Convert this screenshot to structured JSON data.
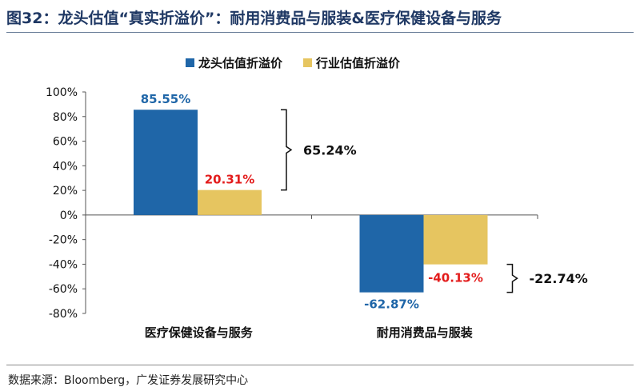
{
  "figure_title": "图32：龙头估值“真实折溢价”：耐用消费品与服装&医疗保健设备与服务",
  "source": "数据来源：Bloomberg，广发证券发展研究中心",
  "colors": {
    "series_0": "#1f66a8",
    "series_1": "#e6c560",
    "neg_label": "#e31c1c"
  },
  "chart_data": {
    "type": "bar",
    "categories": [
      "医疗保健设备与服务",
      "耐用消费品与服装"
    ],
    "series": [
      {
        "name": "龙头估值折溢价",
        "values": [
          85.55,
          -62.87
        ],
        "labels": [
          "85.55%",
          "-62.87%"
        ]
      },
      {
        "name": "行业估值折溢价",
        "values": [
          20.31,
          -40.13
        ],
        "labels": [
          "20.31%",
          "-40.13%"
        ]
      }
    ],
    "ylim": [
      -80,
      100
    ],
    "yticks": [
      100,
      80,
      60,
      40,
      20,
      0,
      -20,
      -40,
      -60,
      -80
    ],
    "ytick_labels": [
      "100%",
      "80%",
      "60%",
      "40%",
      "20%",
      "0%",
      "-20%",
      "-40%",
      "-60%",
      "-80%"
    ],
    "annotations": [
      {
        "text": "65.24%",
        "category": 0,
        "from": 85.55,
        "to": 20.31
      },
      {
        "text": "-22.74%",
        "category": 1,
        "from": -40.13,
        "to": -62.87
      }
    ],
    "legend_position": "top",
    "grid": false,
    "xlabel": "",
    "ylabel": ""
  }
}
